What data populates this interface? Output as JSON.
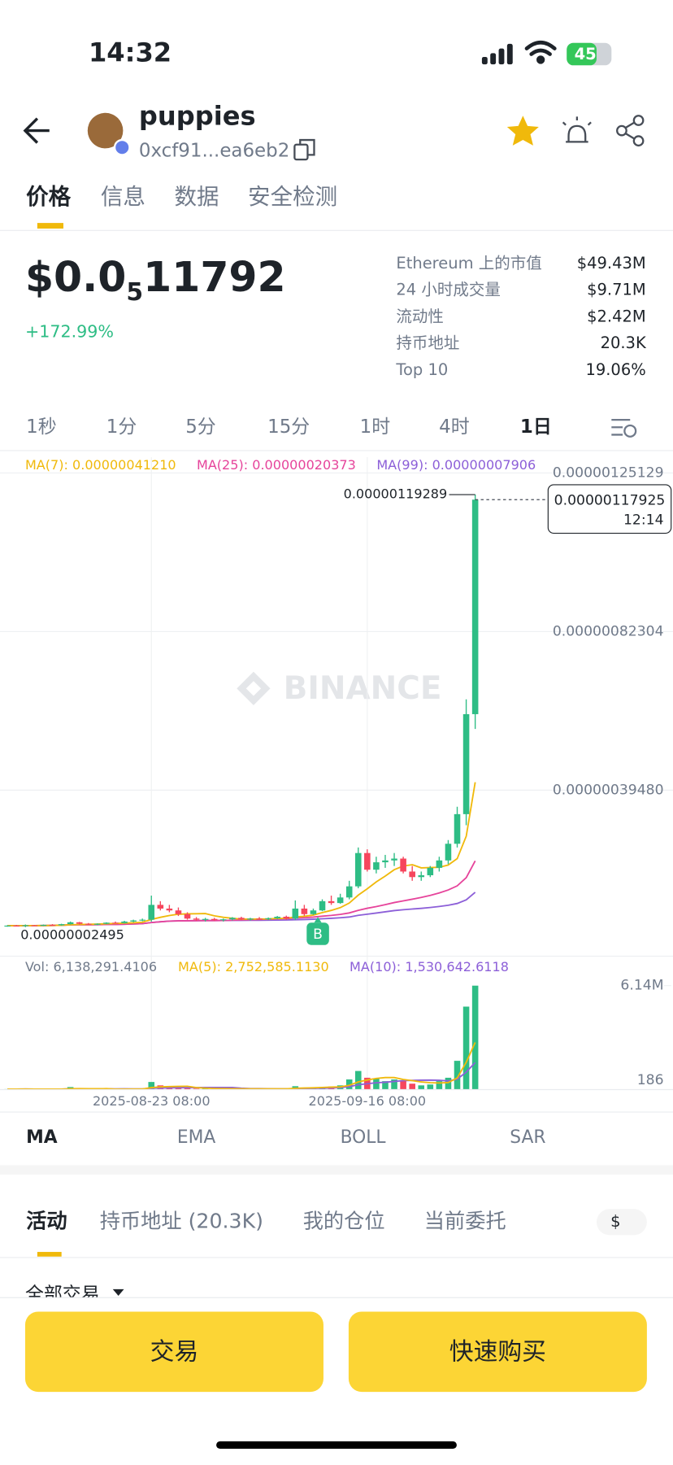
{
  "status_bar": {
    "time": "14:32",
    "battery": "45"
  },
  "header": {
    "name": "puppies",
    "address": "0xcf91...ea6eb2"
  },
  "tabs": [
    "价格",
    "信息",
    "数据",
    "安全检测"
  ],
  "price": {
    "lead": "$0.0",
    "zeros": "5",
    "digits": "11792",
    "change": "+172.99%"
  },
  "stats": [
    {
      "label": "Ethereum 上的市值",
      "value": "$49.43M"
    },
    {
      "label": "24 小时成交量",
      "value": "$9.71M"
    },
    {
      "label": "流动性",
      "value": "$2.42M"
    },
    {
      "label": "持币地址",
      "value": "20.3K"
    },
    {
      "label": "Top 10",
      "value": "19.06%"
    }
  ],
  "intervals": [
    "1秒",
    "1分",
    "5分",
    "15分",
    "1时",
    "4时",
    "1日"
  ],
  "chart_data": {
    "type": "candlestick",
    "ma_legend": [
      {
        "label": "MA(7): 0.00000041210",
        "color": "#f0b90b"
      },
      {
        "label": "MA(25): 0.00000020373",
        "color": "#e6449b"
      },
      {
        "label": "MA(99): 0.00000007906",
        "color": "#8c5fd8"
      }
    ],
    "categories": [
      null,
      null,
      null,
      null,
      null,
      null,
      null,
      null,
      null,
      null,
      null,
      null,
      null,
      null,
      null,
      null,
      "2025-08-23 08:00",
      null,
      null,
      null,
      null,
      null,
      null,
      null,
      null,
      null,
      null,
      null,
      null,
      null,
      null,
      null,
      null,
      null,
      null,
      null,
      null,
      null,
      null,
      null,
      "2025-09-16 08:00",
      null,
      null,
      null,
      null,
      null,
      null,
      null,
      null,
      null,
      null,
      null,
      null
    ],
    "candles": [
      [
        2.8e-08,
        3e-08,
        2.6e-08,
        2.9e-08
      ],
      [
        2.9e-08,
        3.1e-08,
        2.7e-08,
        2.8e-08
      ],
      [
        2.8e-08,
        3.2e-08,
        2.495e-08,
        3e-08
      ],
      [
        3e-08,
        3.1e-08,
        2.8e-08,
        2.9e-08
      ],
      [
        2.9e-08,
        3.2e-08,
        2.8e-08,
        3.1e-08
      ],
      [
        3.1e-08,
        3.3e-08,
        2.9e-08,
        3e-08
      ],
      [
        3e-08,
        3.4e-08,
        2.9e-08,
        3.3e-08
      ],
      [
        3.3e-08,
        4e-08,
        3.2e-08,
        3.8e-08
      ],
      [
        3.8e-08,
        3.9e-08,
        3.2e-08,
        3.4e-08
      ],
      [
        3.4e-08,
        3.6e-08,
        3.1e-08,
        3.2e-08
      ],
      [
        3.2e-08,
        3.5e-08,
        3e-08,
        3.4e-08
      ],
      [
        3.4e-08,
        3.8e-08,
        3.3e-08,
        3.7e-08
      ],
      [
        3.7e-08,
        4e-08,
        3.5e-08,
        3.6e-08
      ],
      [
        3.6e-08,
        4.2e-08,
        3.5e-08,
        4e-08
      ],
      [
        4e-08,
        4.5e-08,
        3.8e-08,
        4.3e-08
      ],
      [
        4.3e-08,
        4.8e-08,
        4.1e-08,
        4.5e-08
      ],
      [
        4.5e-08,
        1.1e-07,
        4e-08,
        8.5e-08
      ],
      [
        8.5e-08,
        9.5e-08,
        7e-08,
        7.5e-08
      ],
      [
        7.5e-08,
        8.5e-08,
        6.5e-08,
        7e-08
      ],
      [
        7e-08,
        7.8e-08,
        5.5e-08,
        6e-08
      ],
      [
        6e-08,
        6.5e-08,
        4.5e-08,
        4.8e-08
      ],
      [
        4.8e-08,
        5.2e-08,
        4.2e-08,
        4.5e-08
      ],
      [
        4.5e-08,
        5e-08,
        4e-08,
        4.7e-08
      ],
      [
        4.7e-08,
        5e-08,
        4.2e-08,
        4.4e-08
      ],
      [
        4.4e-08,
        4.8e-08,
        4e-08,
        4.6e-08
      ],
      [
        4.6e-08,
        5.2e-08,
        4.3e-08,
        5e-08
      ],
      [
        5e-08,
        5.3e-08,
        4.4e-08,
        4.6e-08
      ],
      [
        4.6e-08,
        5e-08,
        4.3e-08,
        4.8e-08
      ],
      [
        4.8e-08,
        5.2e-08,
        4.5e-08,
        4.7e-08
      ],
      [
        4.7e-08,
        5.1e-08,
        4.4e-08,
        4.9e-08
      ],
      [
        4.9e-08,
        5.5e-08,
        4.7e-08,
        5.3e-08
      ],
      [
        5.3e-08,
        5.6e-08,
        4.5e-08,
        4.8e-08
      ],
      [
        4.8e-08,
        9.7e-08,
        4.4e-08,
        7.5e-08
      ],
      [
        7.5e-08,
        8.5e-08,
        5.5e-08,
        6e-08
      ],
      [
        6e-08,
        7.5e-08,
        5.8e-08,
        7e-08
      ],
      [
        7e-08,
        1e-07,
        6.8e-08,
        9.5e-08
      ],
      [
        9.5e-08,
        1.1e-07,
        8.5e-08,
        9e-08
      ],
      [
        9e-08,
        1.15e-07,
        8.8e-08,
        1.05e-07
      ],
      [
        1.05e-07,
        1.5e-07,
        1e-07,
        1.35e-07
      ],
      [
        1.35e-07,
        2.4e-07,
        1.3e-07,
        2.25e-07
      ],
      [
        2.25e-07,
        2.35e-07,
        1.75e-07,
        1.8e-07
      ],
      [
        1.8e-07,
        2.15e-07,
        1.7e-07,
        2e-07
      ],
      [
        2e-07,
        2.2e-07,
        1.85e-07,
        2.05e-07
      ],
      [
        2.05e-07,
        2.25e-07,
        1.9e-07,
        2.1e-07
      ],
      [
        2.1e-07,
        2.15e-07,
        1.7e-07,
        1.75e-07
      ],
      [
        1.75e-07,
        1.9e-07,
        1.5e-07,
        1.6e-07
      ],
      [
        1.6e-07,
        1.75e-07,
        1.5e-07,
        1.65e-07
      ],
      [
        1.65e-07,
        1.9e-07,
        1.6e-07,
        1.85e-07
      ],
      [
        1.85e-07,
        2.15e-07,
        1.75e-07,
        2.05e-07
      ],
      [
        2.05e-07,
        2.6e-07,
        1.95e-07,
        2.5e-07
      ],
      [
        2.5e-07,
        3.5e-07,
        2.4e-07,
        3.3e-07
      ],
      [
        3.3e-07,
        6.4e-07,
        3e-07,
        6e-07
      ],
      [
        6e-07,
        1.19289e-06,
        5.6e-07,
        1.17925e-06
      ]
    ],
    "up_color": "#2ebd85",
    "down_color": "#f6465d",
    "ylim": [
      -5.36e-08,
      1.25129e-06
    ],
    "yticks": [
      {
        "value": 1.25129e-06,
        "label": "0.00000125129"
      },
      {
        "value": 8.2304e-07,
        "label": "0.00000082304"
      },
      {
        "value": 3.948e-07,
        "label": "0.00000039480"
      }
    ],
    "high_label": "0.00000119289",
    "low_label": "0.00000002495",
    "last_price_label": "0.00000117925",
    "countdown": "12:14",
    "trade_marker": "B",
    "watermark": "BINANCE",
    "volume": {
      "header": [
        {
          "label": "Vol: 6,138,291.4106",
          "color": "#707a8a"
        },
        {
          "label": "MA(5): 2,752,585.1130",
          "color": "#f0b90b"
        },
        {
          "label": "MA(10): 1,530,642.6118",
          "color": "#8c5fd8"
        }
      ],
      "values": [
        30000,
        25000,
        40000,
        20000,
        35000,
        30000,
        25000,
        150000,
        30000,
        20000,
        25000,
        40000,
        30000,
        35000,
        25000,
        30000,
        450000,
        250000,
        120000,
        90000,
        80000,
        60000,
        50000,
        40000,
        45000,
        50000,
        40000,
        35000,
        45000,
        50000,
        40000,
        60000,
        200000,
        120000,
        90000,
        150000,
        180000,
        250000,
        600000,
        1100000,
        700000,
        650000,
        500000,
        600000,
        550000,
        350000,
        250000,
        300000,
        500000,
        700000,
        1700000,
        4900000,
        6138291.4106
      ],
      "ylim": [
        0,
        6500000
      ],
      "yticks": [
        {
          "value": 6140000,
          "label": "6.14M"
        },
        {
          "value": 186,
          "label": "186"
        }
      ]
    }
  },
  "indicators": [
    "MA",
    "EMA",
    "BOLL",
    "SAR"
  ],
  "activity_tabs": [
    "活动",
    "持币地址 (20.3K)",
    "我的仓位",
    "当前委托"
  ],
  "currency": "$",
  "filter": "全部交易",
  "buttons": [
    "交易",
    "快速购买"
  ]
}
